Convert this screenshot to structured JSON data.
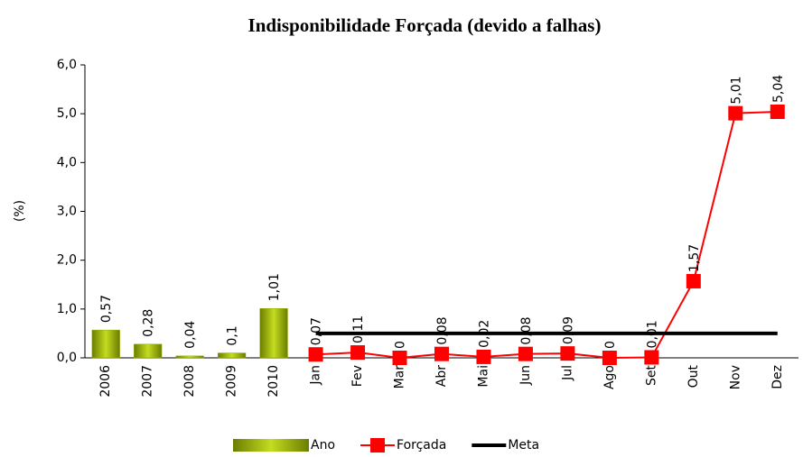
{
  "chart_data": {
    "type": "combo",
    "title": "Indisponibilidade Forçada (devido a falhas)",
    "y_label": "(%)",
    "categories": [
      "2006",
      "2007",
      "2008",
      "2009",
      "2010",
      "Jan",
      "Fev",
      "Mar",
      "Abr",
      "Mai",
      "Jun",
      "Jul",
      "Ago",
      "Set",
      "Out",
      "Nov",
      "Dez"
    ],
    "ylim": [
      0,
      6
    ],
    "yticks": [
      {
        "value": 0,
        "label": "0,0"
      },
      {
        "value": 1,
        "label": "1,0"
      },
      {
        "value": 2,
        "label": "2,0"
      },
      {
        "value": 3,
        "label": "3,0"
      },
      {
        "value": 4,
        "label": "4,0"
      },
      {
        "value": 5,
        "label": "5,0"
      },
      {
        "value": 6,
        "label": "6,0"
      }
    ],
    "legend": "bottom",
    "series": [
      {
        "name": "Ano",
        "kind": "bar",
        "color": "#8fa800",
        "values": [
          0.57,
          0.28,
          0.04,
          0.1,
          1.01,
          null,
          null,
          null,
          null,
          null,
          null,
          null,
          null,
          null,
          null,
          null,
          null
        ],
        "value_labels": [
          "0,57",
          "0,28",
          "0,04",
          "0,1",
          "1,01",
          null,
          null,
          null,
          null,
          null,
          null,
          null,
          null,
          null,
          null,
          null,
          null
        ]
      },
      {
        "name": "Forçada",
        "kind": "line",
        "color": "#ff0000",
        "values": [
          null,
          null,
          null,
          null,
          null,
          0.07,
          0.11,
          0,
          0.08,
          0.02,
          0.08,
          0.09,
          0,
          0.01,
          1.57,
          5.01,
          5.04
        ],
        "value_labels": [
          null,
          null,
          null,
          null,
          null,
          "0,07",
          "0,11",
          "0",
          "0,08",
          "0,02",
          "0,08",
          "0,09",
          "0",
          "0,01",
          "1,57",
          "5,01",
          "5,04"
        ]
      },
      {
        "name": "Meta",
        "kind": "line",
        "color": "#000000",
        "values": [
          null,
          null,
          null,
          null,
          null,
          0.5,
          0.5,
          0.5,
          0.5,
          0.5,
          0.5,
          0.5,
          0.5,
          0.5,
          0.5,
          0.5,
          0.5
        ]
      }
    ]
  }
}
